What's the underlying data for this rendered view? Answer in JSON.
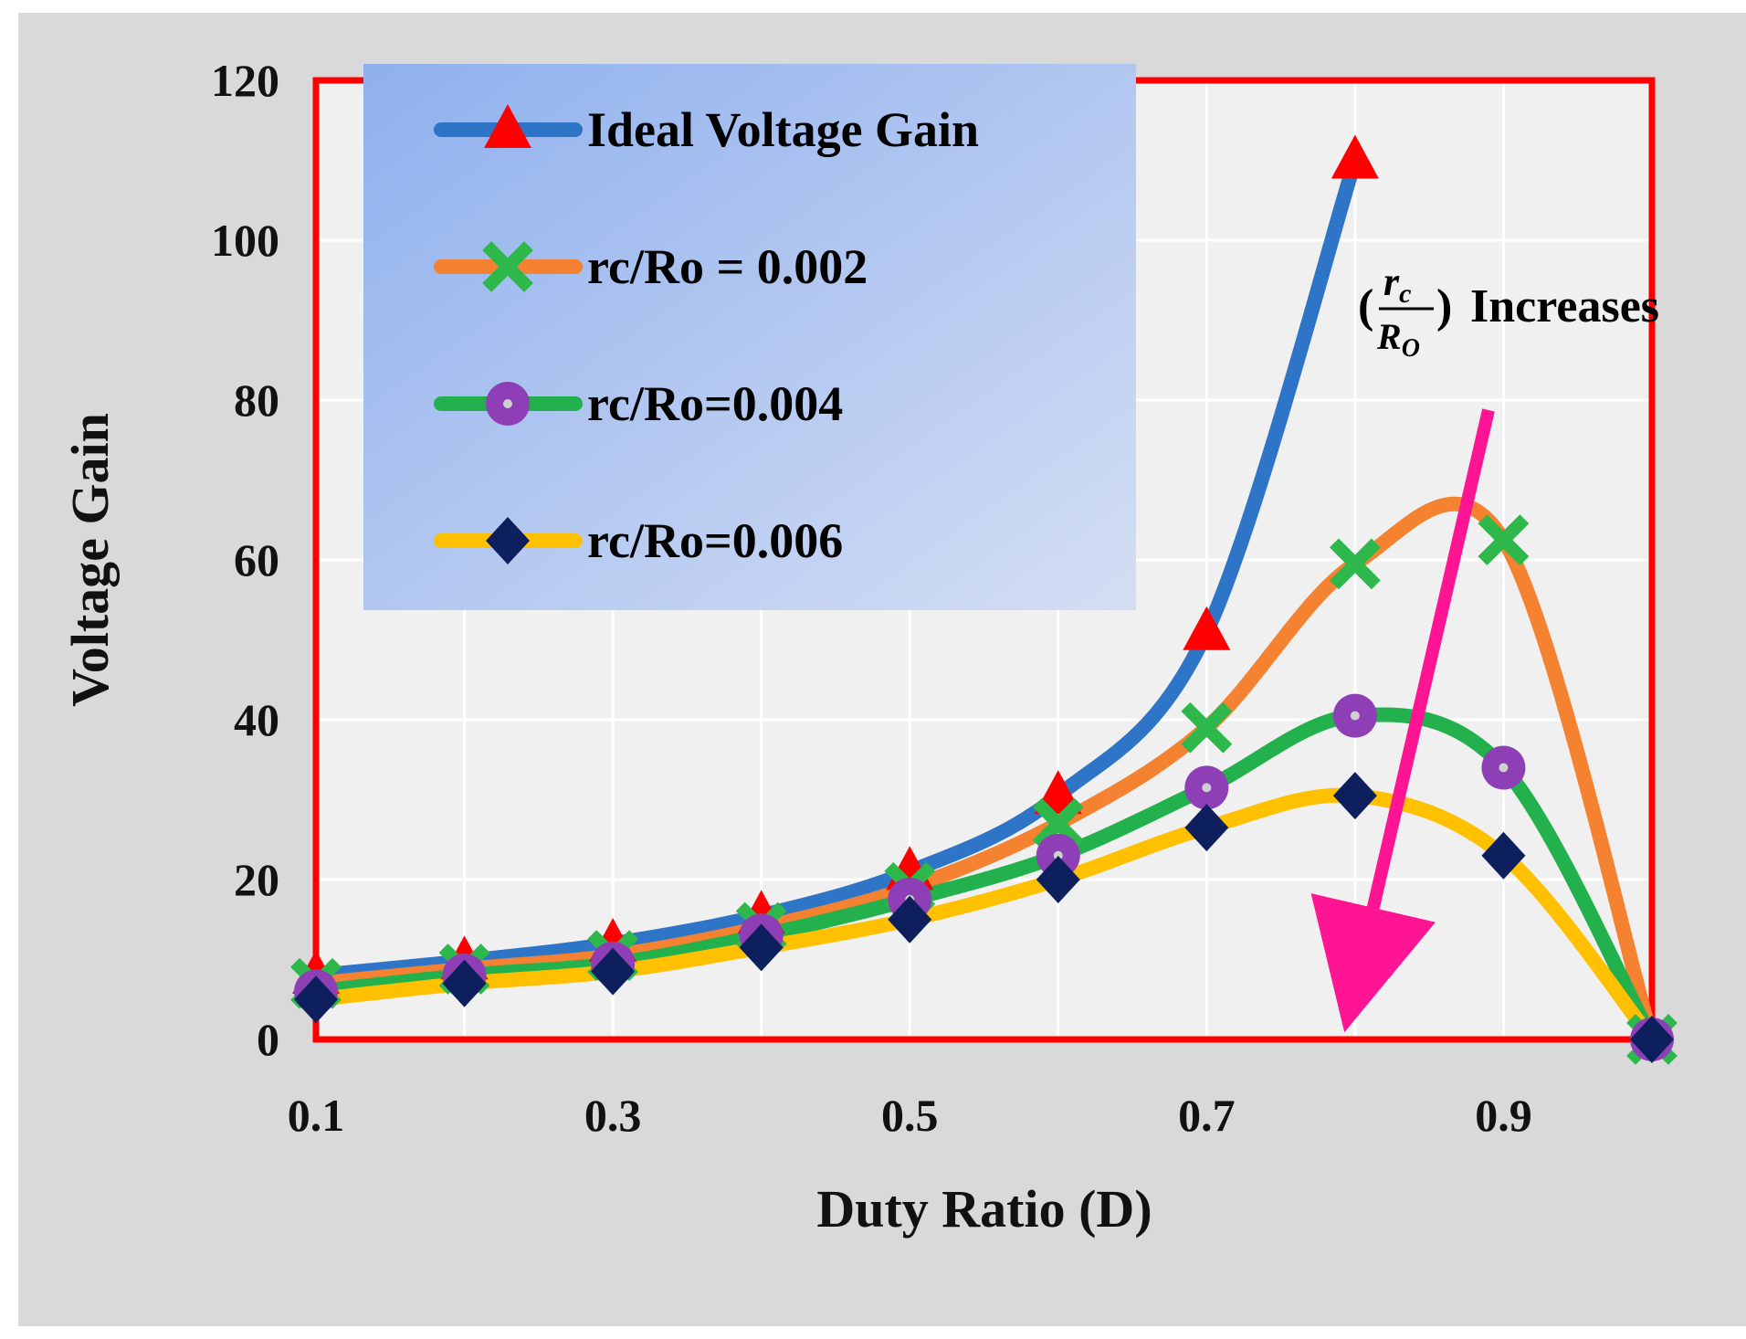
{
  "chart_data": {
    "type": "line",
    "title": "",
    "xlabel": "Duty Ratio (D)",
    "ylabel": "Voltage Gain",
    "x": [
      0.1,
      0.2,
      0.3,
      0.4,
      0.5,
      0.6,
      0.7,
      0.8,
      0.9,
      1.0
    ],
    "xlim": [
      0.1,
      1.0
    ],
    "ylim": [
      0,
      120
    ],
    "x_tick_labels": [
      "0.1",
      "0.3",
      "0.5",
      "0.7",
      "0.9"
    ],
    "x_tick_values": [
      0.1,
      0.3,
      0.5,
      0.7,
      0.9
    ],
    "y_ticks": [
      0,
      20,
      40,
      60,
      80,
      100,
      120
    ],
    "grid": true,
    "legend_position": "top-left",
    "series": [
      {
        "name": "Ideal Voltage Gain",
        "color": "#2e75c8",
        "marker": "triangle",
        "marker_color": "#ff0000",
        "x": [
          0.1,
          0.2,
          0.3,
          0.4,
          0.5,
          0.6,
          0.7,
          0.8
        ],
        "values": [
          8,
          9.8,
          12,
          15.5,
          21,
          30.5,
          51,
          110
        ]
      },
      {
        "name": "rc/Ro = 0.002",
        "color": "#f58231",
        "marker": "x",
        "marker_color": "#2eb84b",
        "x": [
          0.1,
          0.2,
          0.3,
          0.4,
          0.5,
          0.6,
          0.7,
          0.8,
          0.9,
          1.0
        ],
        "values": [
          7,
          8.8,
          10.5,
          14,
          19,
          27,
          39,
          59.5,
          62.5,
          0
        ]
      },
      {
        "name": "rc/Ro=0.004",
        "color": "#22b14c",
        "marker": "circle",
        "marker_color": "#8e3fb5",
        "x": [
          0.1,
          0.2,
          0.3,
          0.4,
          0.5,
          0.6,
          0.7,
          0.8,
          0.9,
          1.0
        ],
        "values": [
          6,
          8,
          9.5,
          13,
          17.5,
          23,
          31.5,
          40.5,
          34,
          0
        ]
      },
      {
        "name": "rc/Ro=0.006",
        "color": "#ffc000",
        "marker": "diamond",
        "marker_color": "#0d1f5c",
        "x": [
          0.1,
          0.2,
          0.3,
          0.4,
          0.5,
          0.6,
          0.7,
          0.8,
          0.9,
          1.0
        ],
        "values": [
          5,
          7,
          8.5,
          11.5,
          15,
          20,
          26.5,
          30.5,
          23,
          0
        ]
      }
    ],
    "annotation": {
      "label": "Increases",
      "fraction_numerator": "r",
      "numerator_sub": "c",
      "fraction_denominator": "R",
      "denominator_sub": "O",
      "open_paren": "(",
      "close_paren": ")",
      "arrow_color": "#ff1493"
    }
  }
}
